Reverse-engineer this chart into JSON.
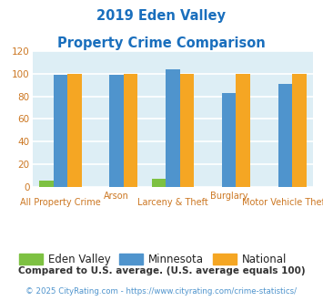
{
  "title_line1": "2019 Eden Valley",
  "title_line2": "Property Crime Comparison",
  "title_color": "#1a6fbd",
  "categories": [
    "All Property Crime",
    "Arson",
    "Larceny & Theft",
    "Burglary",
    "Motor Vehicle Theft"
  ],
  "top_row_labels": [
    "",
    "Arson",
    "",
    "Burglary",
    ""
  ],
  "bot_row_labels": [
    "All Property Crime",
    "",
    "Larceny & Theft",
    "",
    "Motor Vehicle Theft"
  ],
  "eden_valley": [
    5,
    0,
    7,
    0,
    0
  ],
  "minnesota": [
    99,
    99,
    104,
    83,
    91
  ],
  "national": [
    100,
    100,
    100,
    100,
    100
  ],
  "eden_valley_color": "#7dc142",
  "minnesota_color": "#4f94cd",
  "national_color": "#f5a623",
  "ylim": [
    0,
    120
  ],
  "yticks": [
    0,
    20,
    40,
    60,
    80,
    100,
    120
  ],
  "plot_bg_color": "#ddeef5",
  "grid_color": "#ffffff",
  "footnote1": "Compared to U.S. average. (U.S. average equals 100)",
  "footnote2": "© 2025 CityRating.com - https://www.cityrating.com/crime-statistics/",
  "footnote1_color": "#333333",
  "footnote2_color": "#4f94cd",
  "legend_labels": [
    "Eden Valley",
    "Minnesota",
    "National"
  ],
  "tick_label_color": "#cc7722",
  "ytick_color": "#cc7722",
  "bar_width": 0.25
}
